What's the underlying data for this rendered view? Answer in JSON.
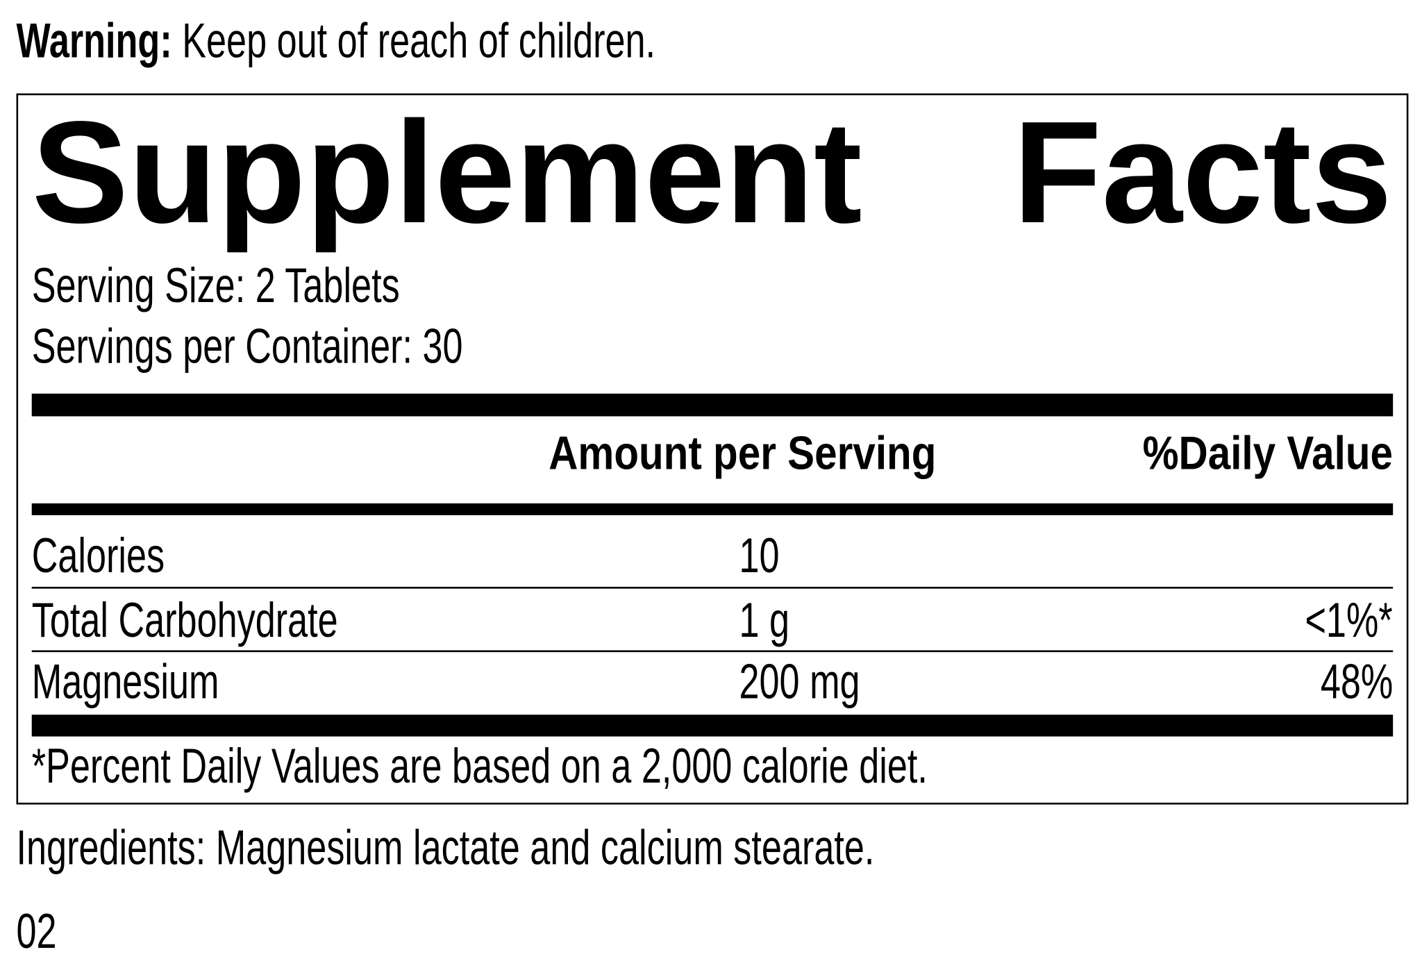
{
  "warning": {
    "label": "Warning:",
    "text": "Keep out of reach of children."
  },
  "title": "Supplement Facts",
  "serving_size": "Serving Size: 2 Tablets",
  "servings_per_container": "Servings per Container: 30",
  "table": {
    "header": {
      "amount": "Amount per Serving",
      "daily_value": "%Daily Value"
    },
    "rows": [
      {
        "name": "Calories",
        "amount": "10"
      },
      {
        "name": "Total Carbohydrate",
        "amount": "1 g",
        "daily_value": "<1%*"
      },
      {
        "name": "Magnesium",
        "amount": "200 mg",
        "daily_value": "48%"
      }
    ]
  },
  "footnote": "*Percent Daily Values are based on a 2,000 calorie diet.",
  "ingredients": "Ingredients: Magnesium lactate and calcium stearate.",
  "code": "02"
}
